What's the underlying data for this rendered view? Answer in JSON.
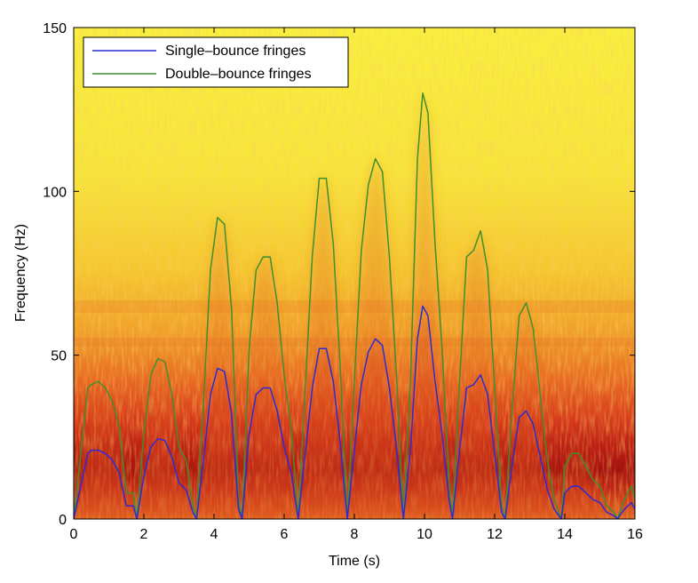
{
  "chart_data": {
    "type": "line",
    "background": "spectrogram",
    "xlabel": "Time (s)",
    "ylabel": "Frequency (Hz)",
    "xlim": [
      0,
      16
    ],
    "ylim": [
      0,
      150
    ],
    "xticks": [
      0,
      2,
      4,
      6,
      8,
      10,
      12,
      14,
      16
    ],
    "yticks": [
      0,
      50,
      100,
      150
    ],
    "legend_position": "top-left",
    "series": [
      {
        "name": "Single–bounce fringes",
        "color": "#2b2bd6",
        "x": [
          0,
          0.2,
          0.4,
          0.5,
          0.7,
          0.9,
          1.1,
          1.3,
          1.5,
          1.7,
          1.8,
          2.0,
          2.2,
          2.4,
          2.6,
          2.8,
          3.0,
          3.2,
          3.4,
          3.5,
          3.7,
          3.9,
          4.1,
          4.3,
          4.5,
          4.7,
          4.8,
          5.0,
          5.2,
          5.4,
          5.6,
          5.8,
          6.0,
          6.2,
          6.4,
          6.6,
          6.8,
          7.0,
          7.2,
          7.4,
          7.6,
          7.8,
          8.0,
          8.2,
          8.4,
          8.6,
          8.8,
          9.0,
          9.2,
          9.4,
          9.6,
          9.8,
          9.95,
          10.1,
          10.3,
          10.5,
          10.7,
          10.8,
          11.0,
          11.2,
          11.4,
          11.6,
          11.8,
          12.0,
          12.2,
          12.3,
          12.5,
          12.7,
          12.9,
          13.1,
          13.3,
          13.5,
          13.7,
          13.9,
          14.0,
          14.2,
          14.4,
          14.6,
          14.8,
          15.0,
          15.2,
          15.4,
          15.5,
          15.7,
          15.9,
          16.0
        ],
        "values": [
          0,
          10,
          20,
          21,
          21,
          20,
          18,
          14,
          4,
          4,
          0,
          13,
          22,
          24.5,
          24,
          19,
          11,
          9,
          2,
          0,
          18,
          38,
          46,
          45,
          32,
          3,
          0,
          26,
          38,
          40,
          40,
          33,
          22,
          14,
          0,
          20,
          40,
          52,
          52,
          42,
          23,
          0,
          21,
          41,
          51,
          55,
          53,
          40,
          22,
          0,
          21,
          55,
          65,
          62,
          42,
          26,
          6,
          0,
          21,
          40,
          41,
          44,
          38,
          20,
          2,
          0,
          17,
          31,
          33,
          29,
          19,
          9,
          3,
          0,
          8,
          10,
          10,
          8,
          6,
          5,
          2,
          1,
          0,
          3,
          5,
          3
        ]
      },
      {
        "name": "Double–bounce fringes",
        "color": "#3f8f2f",
        "x": [
          0,
          0.2,
          0.4,
          0.5,
          0.7,
          0.9,
          1.1,
          1.3,
          1.5,
          1.7,
          1.8,
          2.0,
          2.2,
          2.4,
          2.6,
          2.8,
          3.0,
          3.2,
          3.4,
          3.5,
          3.7,
          3.9,
          4.1,
          4.3,
          4.5,
          4.7,
          4.8,
          5.0,
          5.2,
          5.4,
          5.6,
          5.8,
          6.0,
          6.2,
          6.4,
          6.6,
          6.8,
          7.0,
          7.2,
          7.4,
          7.6,
          7.8,
          8.0,
          8.2,
          8.4,
          8.6,
          8.8,
          9.0,
          9.2,
          9.4,
          9.6,
          9.8,
          9.95,
          10.1,
          10.3,
          10.5,
          10.7,
          10.8,
          11.0,
          11.2,
          11.4,
          11.6,
          11.8,
          12.0,
          12.2,
          12.3,
          12.5,
          12.7,
          12.9,
          13.1,
          13.3,
          13.5,
          13.7,
          13.9,
          14.0,
          14.2,
          14.4,
          14.6,
          14.8,
          15.0,
          15.2,
          15.4,
          15.5,
          15.7,
          15.9,
          16.0
        ],
        "values": [
          0,
          20,
          40,
          41,
          42,
          40,
          36,
          28,
          8,
          8,
          0,
          26,
          44,
          49,
          48,
          38,
          22,
          18,
          4,
          0,
          36,
          76,
          92,
          90,
          64,
          6,
          0,
          52,
          76,
          80,
          80,
          66,
          44,
          28,
          0,
          40,
          80,
          104,
          104,
          84,
          46,
          0,
          42,
          82,
          102,
          110,
          106,
          80,
          44,
          0,
          42,
          110,
          130,
          124,
          84,
          52,
          12,
          0,
          42,
          80,
          82,
          88,
          76,
          40,
          4,
          0,
          34,
          62,
          66,
          58,
          38,
          18,
          6,
          0,
          16,
          20,
          20,
          16,
          12,
          10,
          4,
          2,
          0,
          6,
          10,
          6
        ]
      }
    ]
  }
}
